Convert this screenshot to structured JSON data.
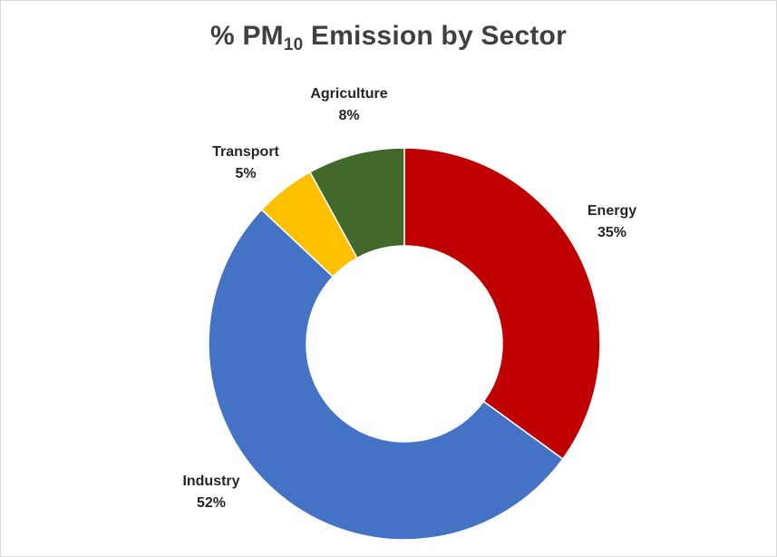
{
  "chart": {
    "title_prefix": "% PM",
    "title_sub": "10",
    "title_suffix": " Emission by Sector"
  },
  "chart_data": {
    "type": "pie",
    "variant": "donut",
    "title": "% PM10 Emission by Sector",
    "categories": [
      "Energy",
      "Industry",
      "Transport",
      "Agriculture"
    ],
    "values": [
      35,
      52,
      5,
      8
    ],
    "value_labels": [
      "35%",
      "52%",
      "5%",
      "8%"
    ],
    "colors": [
      "#c00000",
      "#4472c4",
      "#ffc000",
      "#43682b"
    ],
    "legend": "none",
    "data_labels": "outside, category name and percentage"
  }
}
